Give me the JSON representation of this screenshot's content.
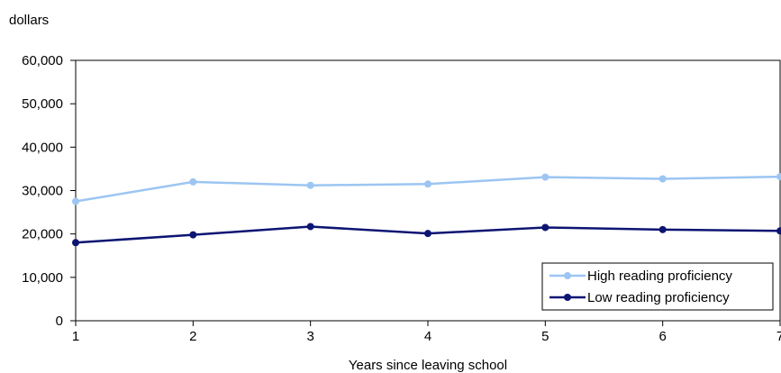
{
  "chart_data": {
    "type": "line",
    "title": "",
    "ylabel": "dollars",
    "xlabel": "Years since leaving school",
    "x": [
      1,
      2,
      3,
      4,
      5,
      6,
      7
    ],
    "x_tick_labels": [
      "1",
      "2",
      "3",
      "4",
      "5",
      "6",
      "7"
    ],
    "ylim": [
      0,
      60000
    ],
    "y_ticks": [
      0,
      10000,
      20000,
      30000,
      40000,
      50000,
      60000
    ],
    "y_tick_labels": [
      "0",
      "10,000",
      "20,000",
      "30,000",
      "40,000",
      "50,000",
      "60,000"
    ],
    "grid": false,
    "legend_position": "bottom-right",
    "series": [
      {
        "name": "High reading proficiency",
        "color": "#9cc5f2",
        "values": [
          27500,
          32000,
          31200,
          31500,
          33100,
          32700,
          33200
        ]
      },
      {
        "name": "Low reading proficiency",
        "color": "#0d1572",
        "values": [
          18000,
          19800,
          21700,
          20100,
          21500,
          21000,
          20700
        ]
      }
    ]
  }
}
